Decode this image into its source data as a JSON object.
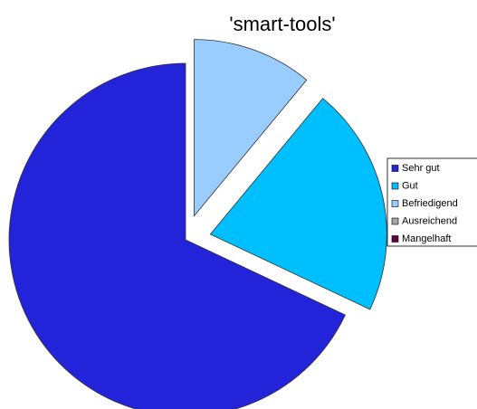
{
  "chart_data": {
    "type": "pie",
    "title": "'smart-tools'",
    "categories": [
      "Sehr gut",
      "Gut",
      "Befriedigend",
      "Ausreichend",
      "Mangelhaft"
    ],
    "values": [
      68,
      21,
      11,
      0,
      0
    ],
    "colors": [
      "#2323d9",
      "#00bfff",
      "#99ccff",
      "#a6a6a6",
      "#660044"
    ],
    "legend": "right"
  }
}
